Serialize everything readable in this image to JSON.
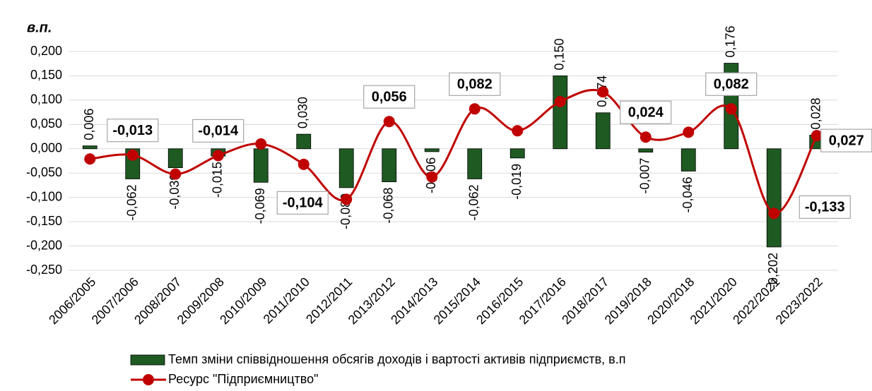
{
  "chart_data": {
    "type": "bar",
    "y_axis_label": "в.п.",
    "categories": [
      "2006/2005",
      "2007/2006",
      "2008/2007",
      "2009/2008",
      "2010/2009",
      "2011/2010",
      "2012/2011",
      "2013/2012",
      "2014/2013",
      "2015/2014",
      "2016/2015",
      "2017/2016",
      "2018/2017",
      "2019/2018",
      "2020/2018",
      "2021/2020",
      "2022/2021",
      "2023/2022"
    ],
    "ylim": [
      -0.25,
      0.2
    ],
    "yticks": [
      {
        "value": -0.25,
        "label": "-0,250"
      },
      {
        "value": -0.2,
        "label": "-0,200"
      },
      {
        "value": -0.15,
        "label": "-0,150"
      },
      {
        "value": -0.1,
        "label": "-0,100"
      },
      {
        "value": -0.05,
        "label": "-0,050"
      },
      {
        "value": 0,
        "label": "0,000"
      },
      {
        "value": 0.05,
        "label": "0,050"
      },
      {
        "value": 0.1,
        "label": "0,100"
      },
      {
        "value": 0.15,
        "label": "0,150"
      },
      {
        "value": 0.2,
        "label": "0,200"
      }
    ],
    "grid": true,
    "series": [
      {
        "name": "Темп зміни співвідношення обсягів доходів і вартості активів підприємств, в.п",
        "type": "bar",
        "color": "#1e5a22",
        "label_color": "#9b3c9b",
        "negative_label_color": "#ff0000",
        "values": [
          0.006,
          -0.062,
          -0.039,
          -0.015,
          -0.069,
          0.03,
          -0.08,
          -0.068,
          -0.006,
          -0.062,
          -0.019,
          0.15,
          0.074,
          -0.007,
          -0.046,
          0.176,
          -0.202,
          0.028
        ],
        "value_labels": [
          "0,006",
          "-0,062",
          "-0,039",
          "-0,015",
          "-0,069",
          "0,030",
          "-0,080",
          "-0,068",
          "-0,006",
          "-0,062",
          "-0,019",
          "0,150",
          "0,074",
          "-0,007",
          "-0,046",
          "0,176",
          "-0,202",
          "0,028"
        ]
      },
      {
        "name": "Ресурс \"Підприємництво\"",
        "type": "line",
        "color": "#c00000",
        "values": [
          -0.021,
          -0.013,
          -0.052,
          -0.014,
          0.01,
          -0.032,
          -0.104,
          0.056,
          -0.058,
          0.082,
          0.037,
          0.097,
          0.117,
          0.024,
          0.034,
          0.082,
          -0.133,
          0.027
        ],
        "value_labels": [
          null,
          "-0,013",
          null,
          "-0,014",
          null,
          null,
          "-0,104",
          "0,056",
          null,
          "0,082",
          null,
          null,
          null,
          "0,024",
          null,
          "0,082",
          "-0,133",
          "0,027"
        ]
      }
    ]
  }
}
